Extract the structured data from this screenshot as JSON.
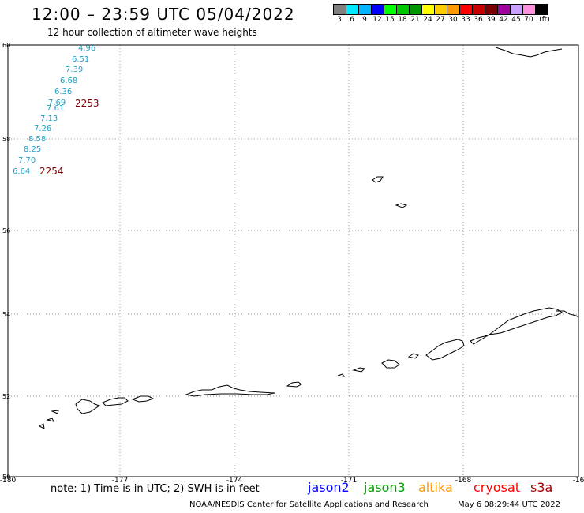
{
  "header": {
    "title": "12:00 – 23:59 UTC 05/04/2022",
    "subtitle": "12 hour collection of altimeter wave heights"
  },
  "legend": {
    "labels": [
      "3",
      "6",
      "9",
      "12",
      "15",
      "18",
      "21",
      "24",
      "27",
      "30",
      "33",
      "36",
      "39",
      "42",
      "45",
      "70",
      "(ft)"
    ],
    "colors": [
      "#808080",
      "#00e8ff",
      "#00b4ff",
      "#0000ff",
      "#00ff00",
      "#00c800",
      "#009600",
      "#ffff00",
      "#ffcc00",
      "#ff9900",
      "#ff0000",
      "#c80000",
      "#7a0000",
      "#a000a0",
      "#c8a0ff",
      "#ff90e0",
      "#000000"
    ]
  },
  "axes": {
    "lat_ticks": [
      "60",
      "58",
      "56",
      "54",
      "52",
      "50"
    ],
    "lon_ticks": [
      "-180",
      "-177",
      "-174",
      "-171",
      "-168",
      "-16"
    ]
  },
  "track": {
    "color": "#1ea0c8",
    "labels": [
      "4.96",
      "6.51",
      "7.39",
      "6.68",
      "6.36",
      "7.69",
      "7.61",
      "7.13",
      "7.26",
      "8.58",
      "8.25",
      "7.70",
      "6.64"
    ],
    "time_color": "#7a0000",
    "time_labels": [
      "2253",
      "2254"
    ]
  },
  "footer": {
    "note": "note:  1) Time is in UTC;  2) SWH is in feet",
    "satellites": [
      {
        "name": "jason2",
        "color": "#0000ff"
      },
      {
        "name": "jason3",
        "color": "#00a000"
      },
      {
        "name": "altika",
        "color": "#ff9900"
      },
      {
        "name": "cryosat",
        "color": "#ff0000"
      },
      {
        "name": "s3a",
        "color": "#a00000"
      }
    ],
    "credit": "NOAA/NESDIS Center for Satellite Applications and Research",
    "generated": "May  6 08:29:44 UTC 2022"
  }
}
